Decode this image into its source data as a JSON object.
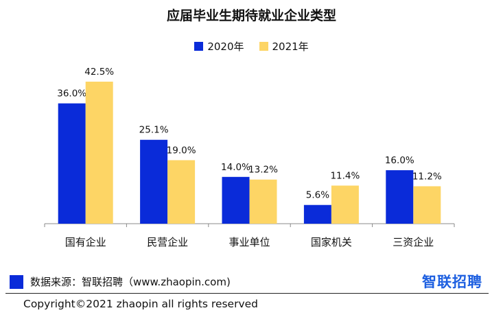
{
  "title": "应届毕业生期待就业企业类型",
  "colors": {
    "s2020": "#0a2bd9",
    "s2021": "#fdd565",
    "logo": "#1d5fe0"
  },
  "chart_data": {
    "type": "bar",
    "title": "应届毕业生期待就业企业类型",
    "categories": [
      "国有企业",
      "民营企业",
      "事业单位",
      "国家机关",
      "三资企业"
    ],
    "series": [
      {
        "name": "2020年",
        "values": [
          36.0,
          25.1,
          14.0,
          5.6,
          16.0
        ],
        "labels": [
          "36.0%",
          "25.1%",
          "14.0%",
          "5.6%",
          "16.0%"
        ]
      },
      {
        "name": "2021年",
        "values": [
          42.5,
          19.0,
          13.2,
          11.4,
          11.2
        ],
        "labels": [
          "42.5%",
          "19.0%",
          "13.2%",
          "11.4%",
          "11.2%"
        ]
      }
    ],
    "unit": "%",
    "ylim": [
      0,
      45
    ],
    "grid": false,
    "legend_position": "top-center"
  },
  "footer": {
    "source": "数据来源：智联招聘（www.zhaopin.com)",
    "logo_text": "智联招聘",
    "copyright": "Copyright©2021 zhaopin all rights reserved"
  }
}
